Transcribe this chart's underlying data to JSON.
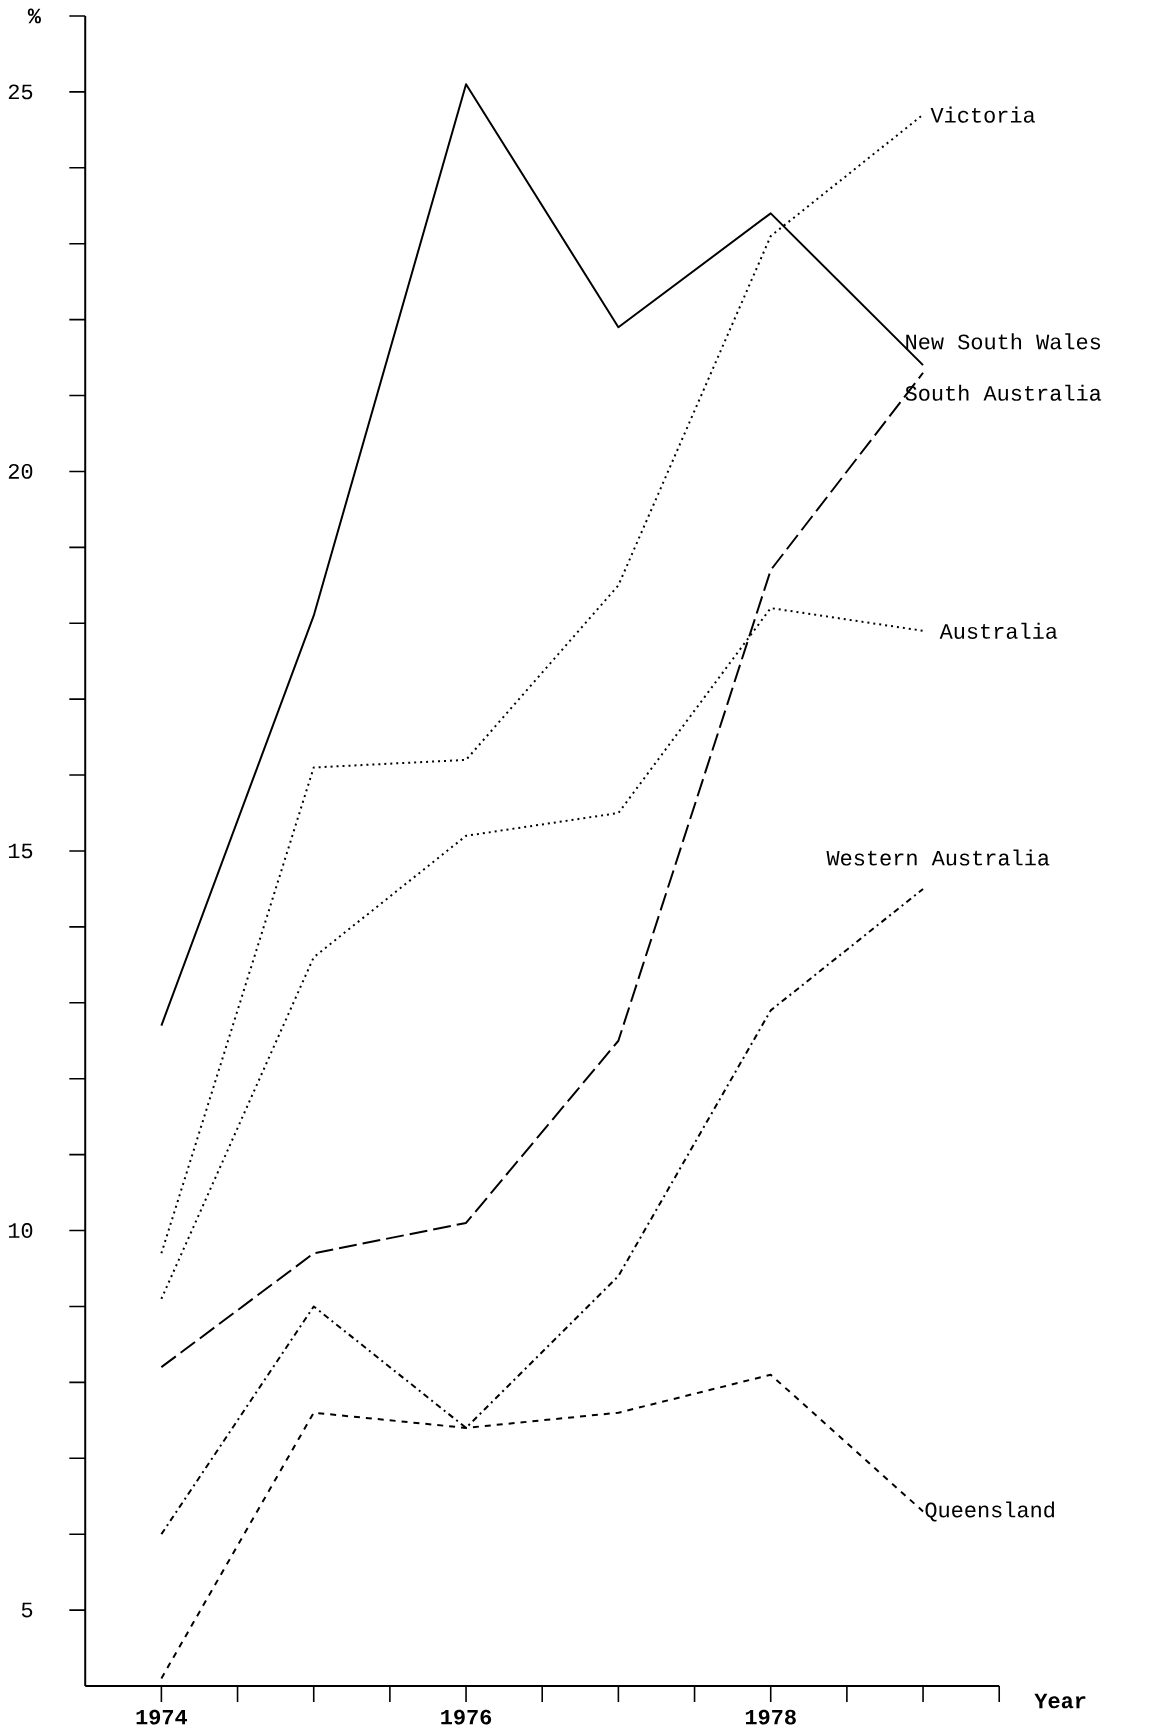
{
  "chart_data": {
    "type": "line",
    "xlabel": "Year",
    "ylabel": "%",
    "x": [
      1974,
      1975,
      1976,
      1977,
      1978,
      1979
    ],
    "series": [
      {
        "name": "Victoria",
        "color": "#000000",
        "line_style": "dotted",
        "values": [
          9.7,
          16.1,
          16.2,
          18.5,
          23.1,
          24.7
        ]
      },
      {
        "name": "New South Wales",
        "color": "#000000",
        "line_style": "solid",
        "values": [
          12.7,
          18.1,
          25.1,
          21.9,
          23.4,
          21.4
        ]
      },
      {
        "name": "South Australia",
        "color": "#000000",
        "line_style": "dashed",
        "values": [
          8.2,
          9.7,
          10.1,
          12.5,
          18.7,
          21.3
        ]
      },
      {
        "name": "Australia",
        "color": "#000000",
        "line_style": "dotted",
        "values": [
          9.1,
          13.6,
          15.2,
          15.5,
          18.2,
          17.9
        ]
      },
      {
        "name": "Western Australia",
        "color": "#000000",
        "line_style": "dashdot",
        "values": [
          6.0,
          9.0,
          7.4,
          9.4,
          12.9,
          14.5
        ]
      },
      {
        "name": "Queensland",
        "color": "#000000",
        "line_style": "dashed",
        "values": [
          4.1,
          7.6,
          7.4,
          7.6,
          8.1,
          6.3
        ]
      }
    ],
    "xlim": [
      1973.5,
      1979.5
    ],
    "ylim": [
      4,
      26
    ],
    "xticks": [
      {
        "value": 1974,
        "label": "1974"
      },
      {
        "value": 1974.5,
        "label": null
      },
      {
        "value": 1975,
        "label": null
      },
      {
        "value": 1975.5,
        "label": null
      },
      {
        "value": 1976,
        "label": "1976"
      },
      {
        "value": 1976.5,
        "label": null
      },
      {
        "value": 1977,
        "label": null
      },
      {
        "value": 1977.5,
        "label": null
      },
      {
        "value": 1978,
        "label": "1978"
      },
      {
        "value": 1978.5,
        "label": null
      },
      {
        "value": 1979,
        "label": null
      },
      {
        "value": 1979.5,
        "label": null
      }
    ],
    "yticks": [
      5,
      {
        "value": 6,
        "label": null
      },
      {
        "value": 7,
        "label": null
      },
      {
        "value": 8,
        "label": null
      },
      {
        "value": 9,
        "label": null
      },
      10,
      {
        "value": 11,
        "label": null
      },
      {
        "value": 12,
        "label": null
      },
      {
        "value": 13,
        "label": null
      },
      {
        "value": 14,
        "label": null
      },
      15,
      {
        "value": 16,
        "label": null
      },
      {
        "value": 17,
        "label": null
      },
      {
        "value": 18,
        "label": null
      },
      {
        "value": 19,
        "label": null
      },
      20,
      {
        "value": 21,
        "label": null
      },
      {
        "value": 22,
        "label": null
      },
      {
        "value": 23,
        "label": null
      },
      {
        "value": 24,
        "label": null
      },
      25,
      {
        "value": 26,
        "label": null
      }
    ],
    "grid": false
  }
}
